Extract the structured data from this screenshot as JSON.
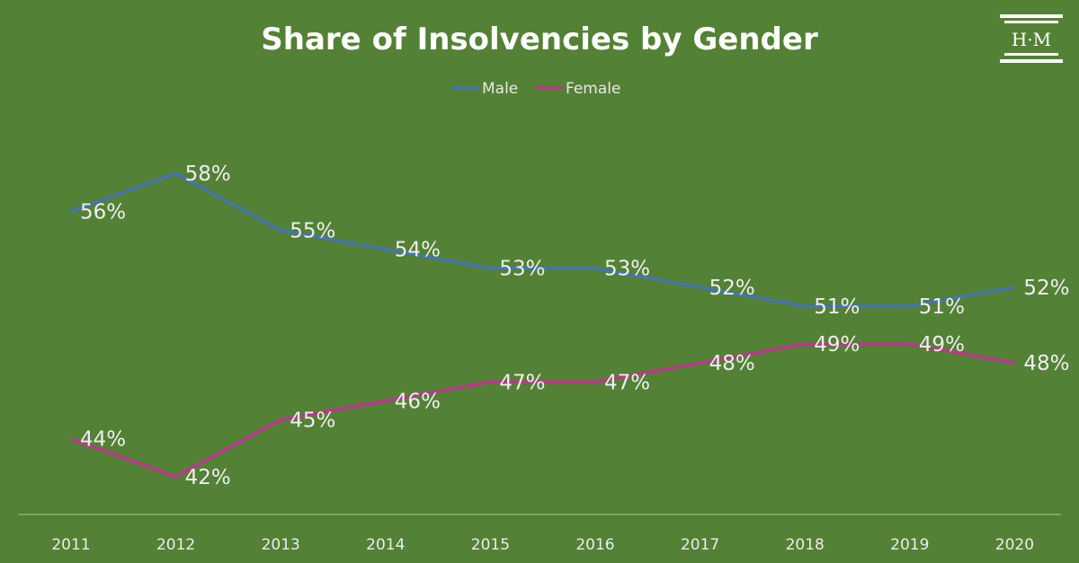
{
  "chart_data": {
    "type": "line",
    "title": "Share of Insolvencies by Gender",
    "x": [
      "2011",
      "2012",
      "2013",
      "2014",
      "2015",
      "2016",
      "2017",
      "2018",
      "2019",
      "2020"
    ],
    "series": [
      {
        "name": "Male",
        "color": "#4472c4",
        "values": [
          56,
          58,
          55,
          54,
          53,
          53,
          52,
          51,
          51,
          52
        ],
        "labels": [
          "56%",
          "58%",
          "55%",
          "54%",
          "53%",
          "53%",
          "52%",
          "51%",
          "51%",
          "52%"
        ]
      },
      {
        "name": "Female",
        "color": "#cc2a9c",
        "values": [
          44,
          42,
          45,
          46,
          47,
          47,
          48,
          49,
          49,
          48
        ],
        "labels": [
          "44%",
          "42%",
          "45%",
          "46%",
          "47%",
          "47%",
          "48%",
          "49%",
          "49%",
          "48%"
        ]
      }
    ],
    "ylim": [
      40,
      60
    ],
    "grid": false,
    "legend": "top-center"
  },
  "logo": {
    "text": "H·M"
  },
  "colors": {
    "background": "#538135",
    "axis": "#a9c49a"
  }
}
